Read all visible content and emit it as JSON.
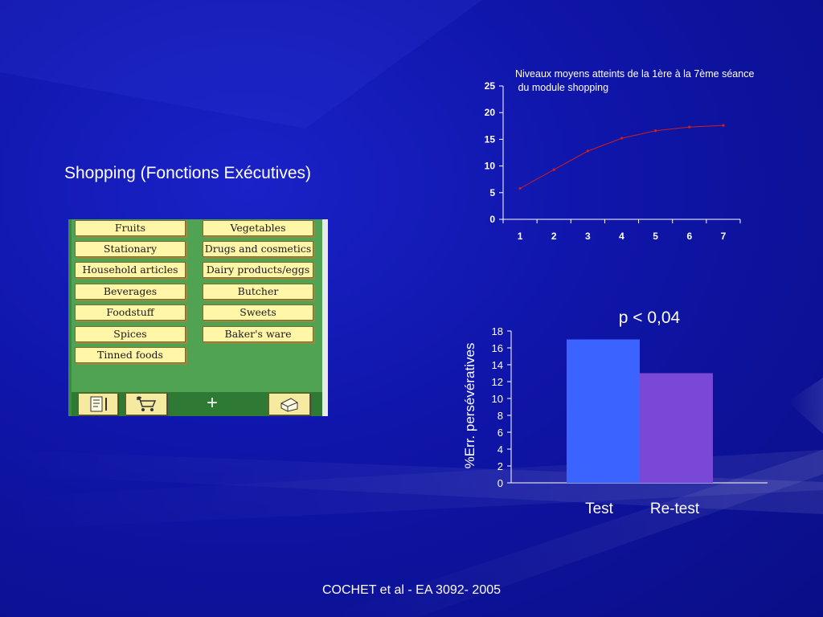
{
  "slide": {
    "title": "Shopping (Fonctions Exécutives)",
    "footer": "COCHET et al - EA 3092- 2005",
    "p_value": "p < 0,04"
  },
  "shopping_ui": {
    "left_column": [
      "Fruits",
      "Stationary",
      "Household articles",
      "Beverages",
      "Foodstuff",
      "Spices",
      "Tinned foods"
    ],
    "right_column": [
      "Vegetables",
      "Drugs and cosmetics",
      "Dairy products/eggs",
      "Butcher",
      "Sweets",
      "Baker's ware"
    ],
    "toolbar_icons": [
      "shopping-list-icon",
      "shopping-cart-icon",
      "plus-icon",
      "wallet-icon"
    ],
    "plus_label": "+"
  },
  "colors": {
    "background": "#0f15a8",
    "panel_green": "#4fa353",
    "button_yellow": "#fff6a8",
    "line_red": "#cc1f1f",
    "bar_test": "#3b63ff",
    "bar_retest": "#7a48d6"
  },
  "chart_data": [
    {
      "type": "line",
      "title": "Niveaux moyens atteints de la 1ère à la 7ème séance\n du module shopping",
      "title_lines": [
        "Niveaux moyens atteints de la 1ère à la 7ème séance",
        " du module shopping"
      ],
      "x": [
        1,
        2,
        3,
        4,
        5,
        6,
        7
      ],
      "y": [
        5.8,
        9.3,
        12.8,
        15.2,
        16.6,
        17.3,
        17.6
      ],
      "ylim": [
        0,
        25
      ],
      "yticks": [
        0,
        5,
        10,
        15,
        20,
        25
      ],
      "grid": false,
      "line_color": "#cc1f1f"
    },
    {
      "type": "bar",
      "title": "p < 0,04",
      "categories": [
        "Test",
        "Re-test"
      ],
      "values": [
        17,
        13
      ],
      "ylabel": "%Err. persévératives",
      "ylim": [
        0,
        18
      ],
      "yticks": [
        0,
        2,
        4,
        6,
        8,
        10,
        12,
        14,
        16,
        18
      ],
      "grid": false,
      "colors": [
        "#3b63ff",
        "#7a48d6"
      ]
    }
  ]
}
